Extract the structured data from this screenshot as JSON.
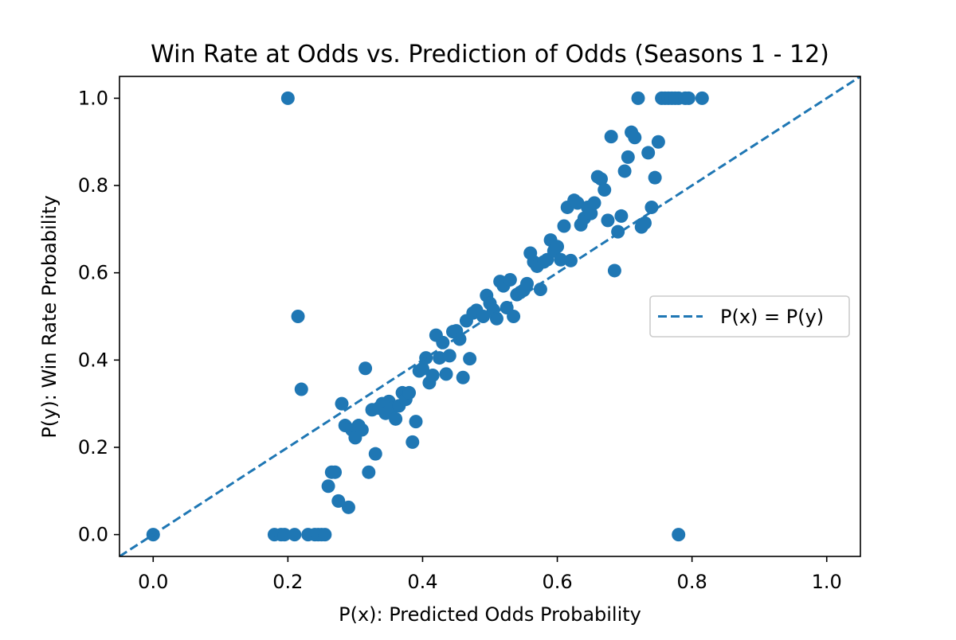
{
  "chart_data": {
    "type": "scatter",
    "title": "Win Rate at Odds vs. Prediction of Odds (Seasons 1 - 12)",
    "xlabel": "P(x): Predicted Odds Probability",
    "ylabel": "P(y): Win Rate Probability",
    "xlim": [
      -0.05,
      1.05
    ],
    "ylim": [
      -0.05,
      1.05
    ],
    "xticks": [
      0.0,
      0.2,
      0.4,
      0.6,
      0.8,
      1.0
    ],
    "yticks": [
      0.0,
      0.2,
      0.4,
      0.6,
      0.8,
      1.0
    ],
    "xtick_labels": [
      "0.0",
      "0.2",
      "0.4",
      "0.6",
      "0.8",
      "1.0"
    ],
    "ytick_labels": [
      "0.0",
      "0.2",
      "0.4",
      "0.6",
      "0.8",
      "1.0"
    ],
    "grid": false,
    "legend_position": "center-right",
    "colors": {
      "points": "#1f77b4",
      "reference_line": "#1f77b4"
    },
    "reference_line": {
      "label": "P(x) = P(y)",
      "style": "dashed",
      "points": [
        [
          -0.05,
          -0.05
        ],
        [
          1.05,
          1.05
        ]
      ]
    },
    "points": [
      [
        0.0,
        0.0
      ],
      [
        0.18,
        0.0
      ],
      [
        0.19,
        0.0
      ],
      [
        0.195,
        0.0
      ],
      [
        0.21,
        0.0
      ],
      [
        0.23,
        0.0
      ],
      [
        0.24,
        0.0
      ],
      [
        0.245,
        0.0
      ],
      [
        0.25,
        0.0
      ],
      [
        0.255,
        0.0
      ],
      [
        0.78,
        0.0
      ],
      [
        0.2,
        1.0
      ],
      [
        0.215,
        0.5
      ],
      [
        0.22,
        0.333
      ],
      [
        0.26,
        0.111
      ],
      [
        0.265,
        0.143
      ],
      [
        0.27,
        0.143
      ],
      [
        0.275,
        0.077
      ],
      [
        0.29,
        0.0625
      ],
      [
        0.28,
        0.3
      ],
      [
        0.285,
        0.25
      ],
      [
        0.295,
        0.24
      ],
      [
        0.3,
        0.222
      ],
      [
        0.305,
        0.25
      ],
      [
        0.31,
        0.24
      ],
      [
        0.315,
        0.381
      ],
      [
        0.32,
        0.143
      ],
      [
        0.325,
        0.286
      ],
      [
        0.33,
        0.185
      ],
      [
        0.335,
        0.29
      ],
      [
        0.34,
        0.3
      ],
      [
        0.345,
        0.278
      ],
      [
        0.35,
        0.305
      ],
      [
        0.355,
        0.29
      ],
      [
        0.36,
        0.265
      ],
      [
        0.365,
        0.295
      ],
      [
        0.37,
        0.325
      ],
      [
        0.375,
        0.31
      ],
      [
        0.38,
        0.325
      ],
      [
        0.385,
        0.212
      ],
      [
        0.39,
        0.259
      ],
      [
        0.395,
        0.375
      ],
      [
        0.4,
        0.38
      ],
      [
        0.405,
        0.405
      ],
      [
        0.41,
        0.348
      ],
      [
        0.415,
        0.365
      ],
      [
        0.42,
        0.457
      ],
      [
        0.425,
        0.405
      ],
      [
        0.43,
        0.44
      ],
      [
        0.435,
        0.368
      ],
      [
        0.44,
        0.41
      ],
      [
        0.445,
        0.465
      ],
      [
        0.45,
        0.467
      ],
      [
        0.455,
        0.448
      ],
      [
        0.46,
        0.36
      ],
      [
        0.465,
        0.49
      ],
      [
        0.47,
        0.403
      ],
      [
        0.475,
        0.508
      ],
      [
        0.48,
        0.514
      ],
      [
        0.49,
        0.5
      ],
      [
        0.495,
        0.548
      ],
      [
        0.5,
        0.53
      ],
      [
        0.505,
        0.515
      ],
      [
        0.51,
        0.495
      ],
      [
        0.515,
        0.58
      ],
      [
        0.52,
        0.57
      ],
      [
        0.525,
        0.52
      ],
      [
        0.53,
        0.584
      ],
      [
        0.535,
        0.5
      ],
      [
        0.54,
        0.55
      ],
      [
        0.545,
        0.555
      ],
      [
        0.55,
        0.56
      ],
      [
        0.555,
        0.575
      ],
      [
        0.56,
        0.645
      ],
      [
        0.565,
        0.625
      ],
      [
        0.57,
        0.615
      ],
      [
        0.575,
        0.562
      ],
      [
        0.58,
        0.625
      ],
      [
        0.585,
        0.63
      ],
      [
        0.59,
        0.675
      ],
      [
        0.595,
        0.65
      ],
      [
        0.6,
        0.66
      ],
      [
        0.605,
        0.63
      ],
      [
        0.61,
        0.707
      ],
      [
        0.615,
        0.75
      ],
      [
        0.62,
        0.628
      ],
      [
        0.625,
        0.766
      ],
      [
        0.63,
        0.76
      ],
      [
        0.635,
        0.71
      ],
      [
        0.64,
        0.725
      ],
      [
        0.645,
        0.75
      ],
      [
        0.65,
        0.736
      ],
      [
        0.655,
        0.76
      ],
      [
        0.66,
        0.82
      ],
      [
        0.665,
        0.815
      ],
      [
        0.67,
        0.79
      ],
      [
        0.675,
        0.72
      ],
      [
        0.68,
        0.912
      ],
      [
        0.685,
        0.605
      ],
      [
        0.69,
        0.694
      ],
      [
        0.695,
        0.73
      ],
      [
        0.7,
        0.833
      ],
      [
        0.705,
        0.865
      ],
      [
        0.71,
        0.922
      ],
      [
        0.715,
        0.91
      ],
      [
        0.72,
        1.0
      ],
      [
        0.725,
        0.705
      ],
      [
        0.73,
        0.714
      ],
      [
        0.735,
        0.875
      ],
      [
        0.74,
        0.75
      ],
      [
        0.745,
        0.818
      ],
      [
        0.75,
        0.9
      ],
      [
        0.755,
        1.0
      ],
      [
        0.76,
        1.0
      ],
      [
        0.765,
        1.0
      ],
      [
        0.77,
        1.0
      ],
      [
        0.775,
        1.0
      ],
      [
        0.78,
        1.0
      ],
      [
        0.79,
        1.0
      ],
      [
        0.795,
        1.0
      ],
      [
        0.815,
        1.0
      ]
    ]
  }
}
